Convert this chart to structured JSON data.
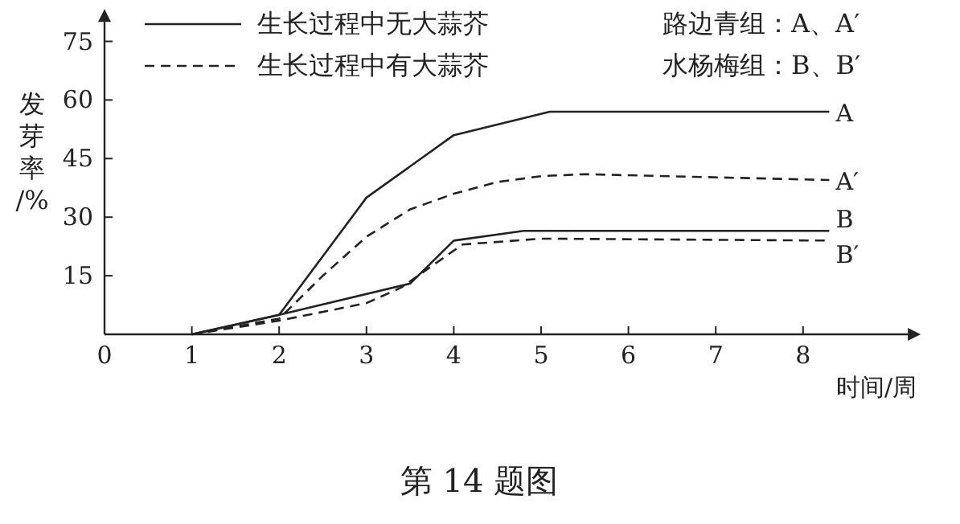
{
  "chart_data": {
    "type": "line",
    "xlabel": "时间/周",
    "ylabel": "发芽率/%",
    "xlim": [
      0,
      9.2
    ],
    "ylim": [
      0,
      80
    ],
    "xticks": [
      0,
      1,
      2,
      3,
      4,
      5,
      6,
      7,
      8
    ],
    "yticks": [
      15,
      30,
      45,
      60,
      75
    ],
    "grid": false,
    "marker": "none",
    "series": [
      {
        "name": "A",
        "color": "#222222",
        "line_style": "solid",
        "x": [
          1,
          2,
          3,
          4,
          5.1,
          8.3
        ],
        "values": [
          0,
          5,
          35,
          51,
          57,
          57
        ]
      },
      {
        "name": "A′",
        "color": "#222222",
        "line_style": "dashed",
        "x": [
          1,
          2,
          2.5,
          3,
          3.5,
          4,
          4.5,
          5,
          5.5,
          8.3
        ],
        "values": [
          0,
          4,
          15,
          25,
          32,
          36,
          39,
          40.5,
          41,
          39.5
        ]
      },
      {
        "name": "B",
        "color": "#222222",
        "line_style": "solid",
        "x": [
          1,
          2,
          3.5,
          4,
          4.8,
          8.3
        ],
        "values": [
          0,
          5,
          13,
          24,
          26.5,
          26.5
        ]
      },
      {
        "name": "B′",
        "color": "#222222",
        "line_style": "dashed",
        "x": [
          1,
          2,
          3,
          3.4,
          4.1,
          5,
          8.3
        ],
        "values": [
          0,
          3.5,
          8,
          12,
          23,
          24.5,
          24
        ]
      }
    ],
    "annotations": [
      "生长过程中无大蒜芥",
      "生长过程中有大蒜芥",
      "路边青组：A、A′",
      "水杨梅组：B、B′",
      "第 14 题图"
    ]
  }
}
